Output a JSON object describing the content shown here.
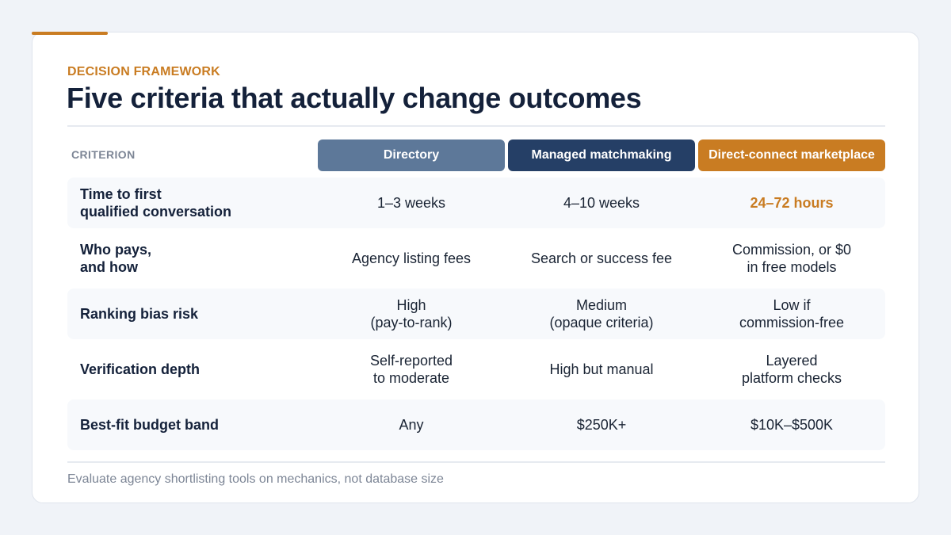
{
  "eyebrow": "DECISION FRAMEWORK",
  "title": "Five criteria that actually change outcomes",
  "table": {
    "criterion_header": "CRITERION",
    "columns": [
      {
        "label": "Directory",
        "color": "#5d7899"
      },
      {
        "label": "Managed matchmaking",
        "color": "#253f66"
      },
      {
        "label": "Direct-connect marketplace",
        "color": "#c97c22"
      }
    ],
    "rows": [
      {
        "criterion": "Time to first\nqualified conversation",
        "values": [
          "1–3 weeks",
          "4–10 weeks",
          "24–72 hours"
        ]
      },
      {
        "criterion": "Who pays,\nand how",
        "values": [
          "Agency listing fees",
          "Search or success fee",
          "Commission, or $0\nin free models"
        ]
      },
      {
        "criterion": "Ranking bias risk",
        "values": [
          "High\n(pay-to-rank)",
          "Medium\n(opaque criteria)",
          "Low if\ncommission-free"
        ]
      },
      {
        "criterion": "Verification depth",
        "values": [
          "Self-reported\nto moderate",
          "High but manual",
          "Layered\nplatform checks"
        ]
      },
      {
        "criterion": "Best-fit budget band",
        "values": [
          "Any",
          "$250K+",
          "$10K–$500K"
        ]
      }
    ]
  },
  "footer": "Evaluate agency shortlisting tools on mechanics, not database size",
  "colors": {
    "accent": "#c97c22",
    "navy": "#253f66",
    "slate": "#5d7899",
    "background": "#f0f3f8"
  }
}
